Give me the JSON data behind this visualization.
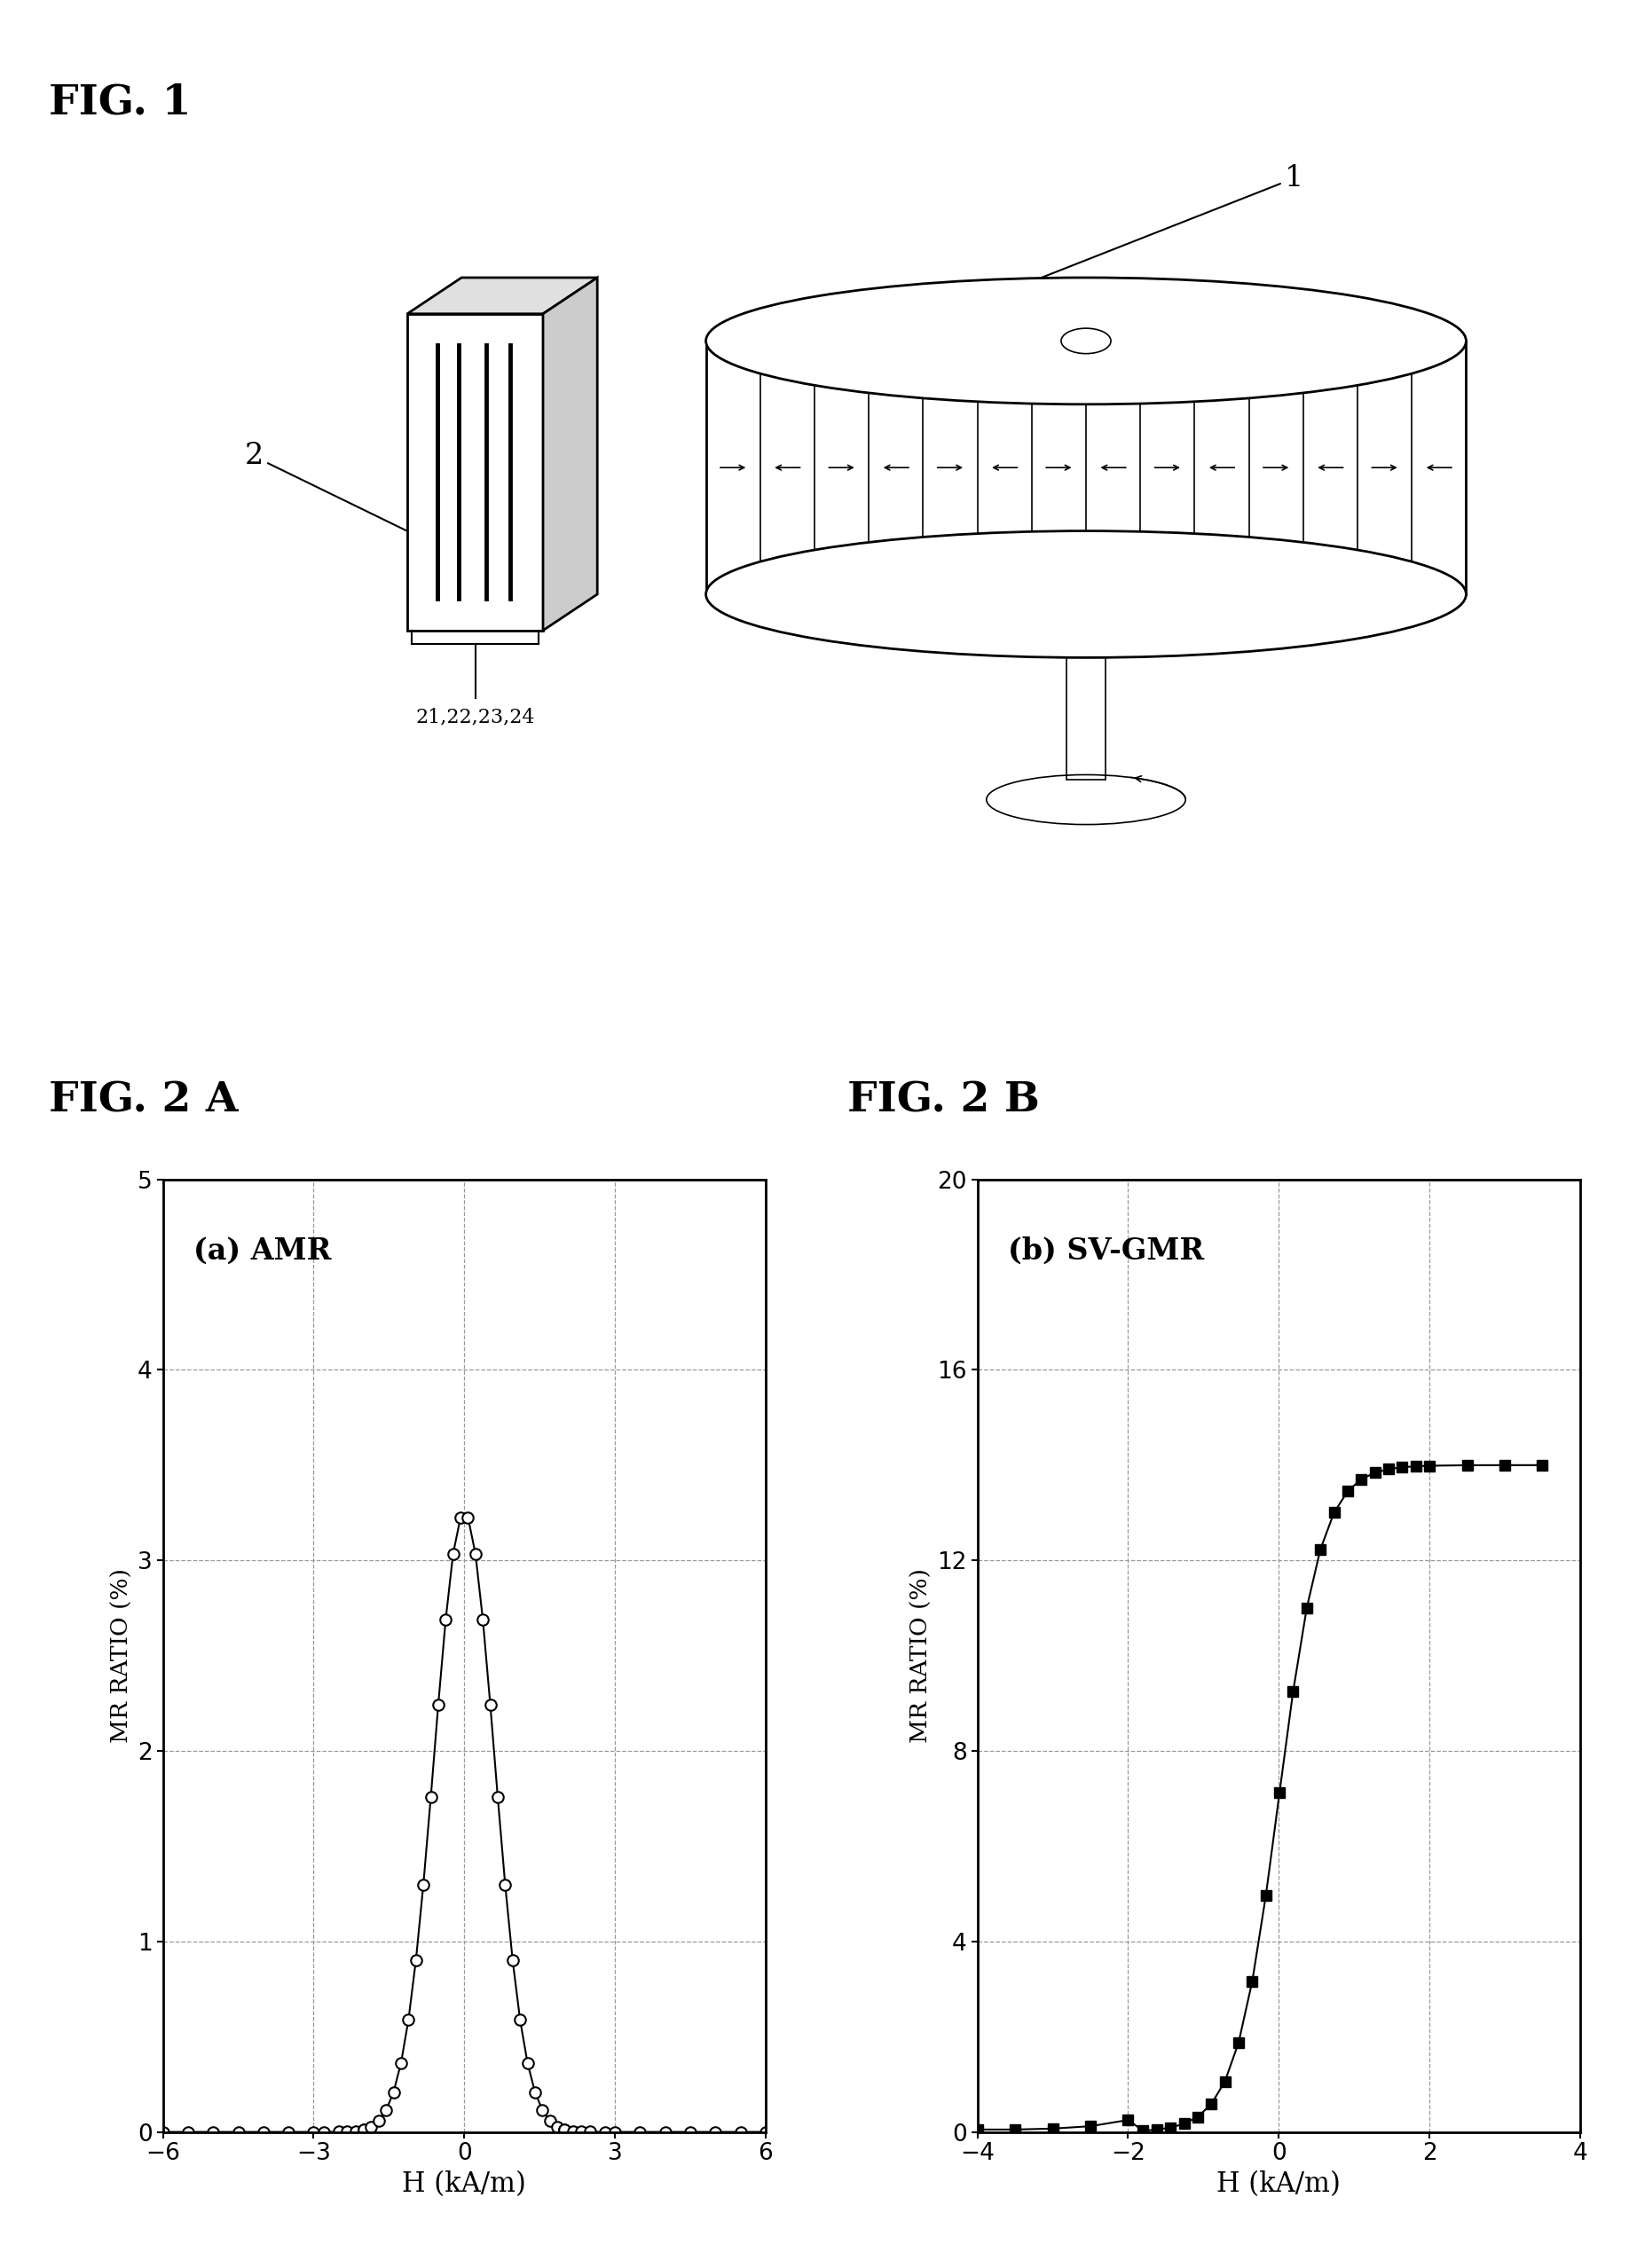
{
  "fig1_label": "FIG. 1",
  "fig2a_label": "FIG. 2 A",
  "fig2b_label": "FIG. 2 B",
  "label_1": "1",
  "label_2": "2",
  "label_21_24": "21,22,23,24",
  "amr_label": "(a) AMR",
  "svgmr_label": "(b) SV-GMR",
  "amr_xlabel": "H (kA/m)",
  "amr_ylabel": "MR RATIO (%)",
  "svgmr_xlabel": "H (kA/m)",
  "svgmr_ylabel": "MR RATIO (%)",
  "amr_xlim": [
    -6,
    6
  ],
  "amr_ylim": [
    0,
    5
  ],
  "amr_xticks": [
    -6,
    -3,
    0,
    3,
    6
  ],
  "amr_yticks": [
    0,
    1,
    2,
    3,
    4,
    5
  ],
  "svgmr_xlim": [
    -4,
    4
  ],
  "svgmr_ylim": [
    0,
    20
  ],
  "svgmr_xticks": [
    -4,
    -2,
    0,
    2,
    4
  ],
  "svgmr_yticks": [
    0,
    4,
    8,
    12,
    16,
    20
  ],
  "background_color": "#ffffff",
  "plot_bg_color": "#ffffff",
  "grid_color": "#999999",
  "line_color": "#000000",
  "marker_color": "#000000"
}
